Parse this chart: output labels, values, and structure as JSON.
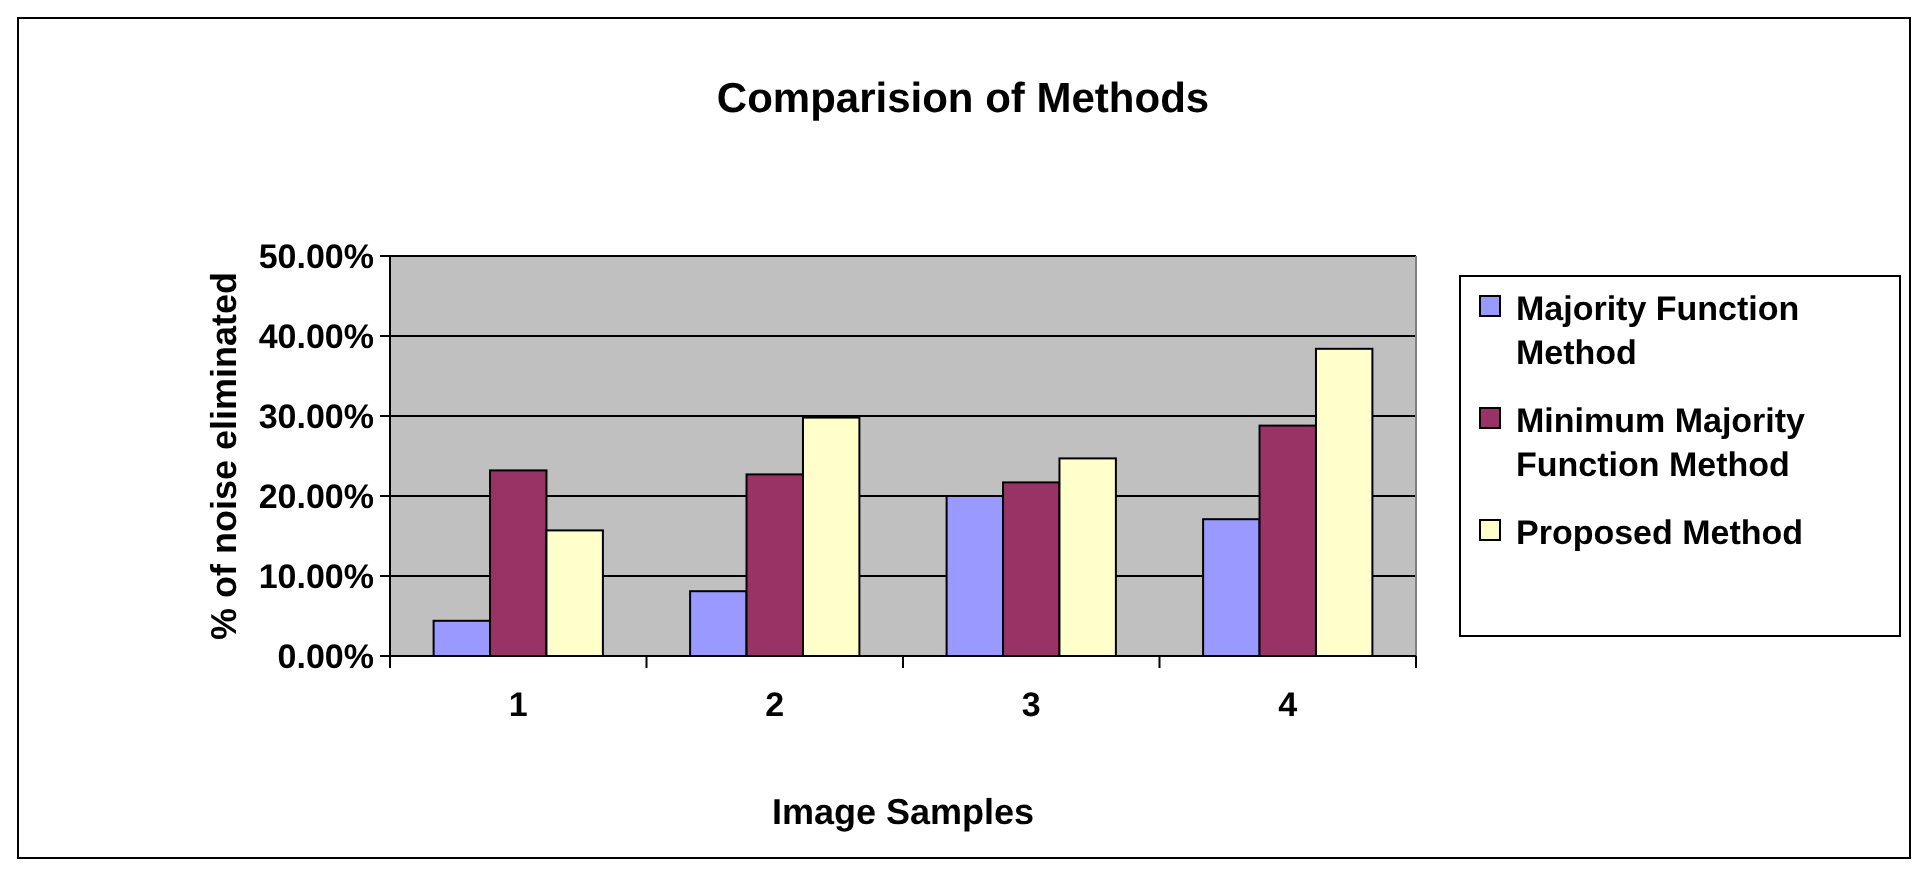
{
  "chart_data": {
    "type": "bar",
    "title": "Comparision of Methods",
    "xlabel": "Image Samples",
    "ylabel": "% of noise eliminated",
    "categories": [
      "1",
      "2",
      "3",
      "4"
    ],
    "series": [
      {
        "name": "Majority Function Method",
        "color": "#9999ff",
        "values": [
          4.4,
          8.1,
          20.0,
          17.1
        ]
      },
      {
        "name": "Minimum Majority Function Method",
        "color": "#993366",
        "values": [
          23.2,
          22.7,
          21.7,
          28.8
        ]
      },
      {
        "name": "Proposed Method",
        "color": "#ffffcc",
        "values": [
          15.7,
          29.8,
          24.7,
          38.4
        ]
      }
    ],
    "ylim": [
      0,
      50
    ],
    "yticks": [
      {
        "value": 0,
        "label": "0.00%"
      },
      {
        "value": 10,
        "label": "10.00%"
      },
      {
        "value": 20,
        "label": "20.00%"
      },
      {
        "value": 30,
        "label": "30.00%"
      },
      {
        "value": 40,
        "label": "40.00%"
      },
      {
        "value": 50,
        "label": "50.00%"
      }
    ],
    "grid": "y",
    "legend": "right"
  }
}
